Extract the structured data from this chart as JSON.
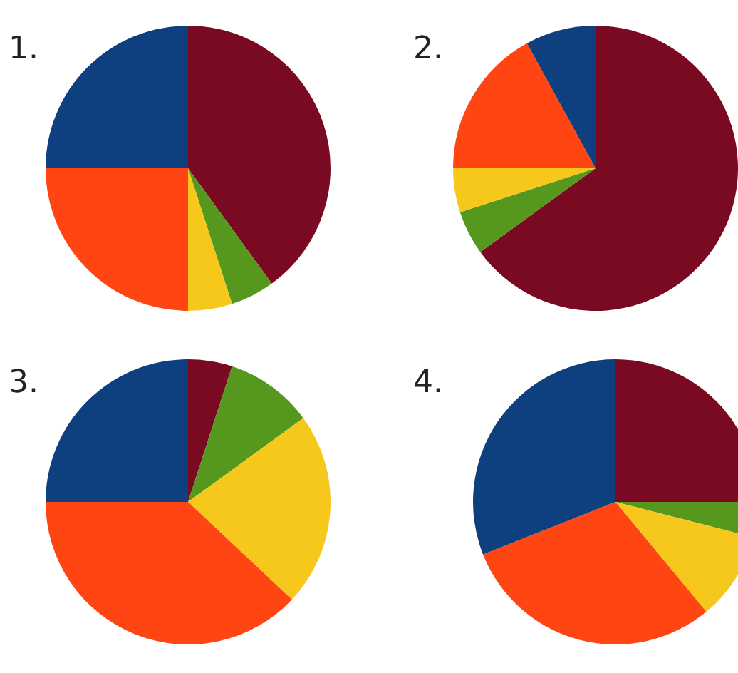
{
  "chart_data": [
    {
      "type": "pie",
      "title": "1.",
      "categories": [
        null,
        null,
        null,
        null,
        null
      ],
      "values": [
        40,
        5,
        5,
        25,
        25
      ],
      "colors": [
        "#7a0a22",
        "#56981e",
        "#f6c81c",
        "#ff4612",
        "#0e3f7e"
      ]
    },
    {
      "type": "pie",
      "title": "2.",
      "categories": [
        null,
        null,
        null,
        null,
        null
      ],
      "values": [
        65,
        5,
        5,
        17,
        8
      ],
      "colors": [
        "#7a0a22",
        "#56981e",
        "#f6c81c",
        "#ff4612",
        "#0e3f7e"
      ]
    },
    {
      "type": "pie",
      "title": "3.",
      "categories": [
        null,
        null,
        null,
        null,
        null
      ],
      "values": [
        5,
        10,
        22,
        38,
        25
      ],
      "colors": [
        "#7a0a22",
        "#56981e",
        "#f6c81c",
        "#ff4612",
        "#0e3f7e"
      ]
    },
    {
      "type": "pie",
      "title": "4.",
      "categories": [
        null,
        null,
        null,
        null,
        null
      ],
      "values": [
        25,
        4,
        10,
        30,
        31
      ],
      "colors": [
        "#7a0a22",
        "#56981e",
        "#f6c81c",
        "#ff4612",
        "#0e3f7e"
      ]
    }
  ]
}
